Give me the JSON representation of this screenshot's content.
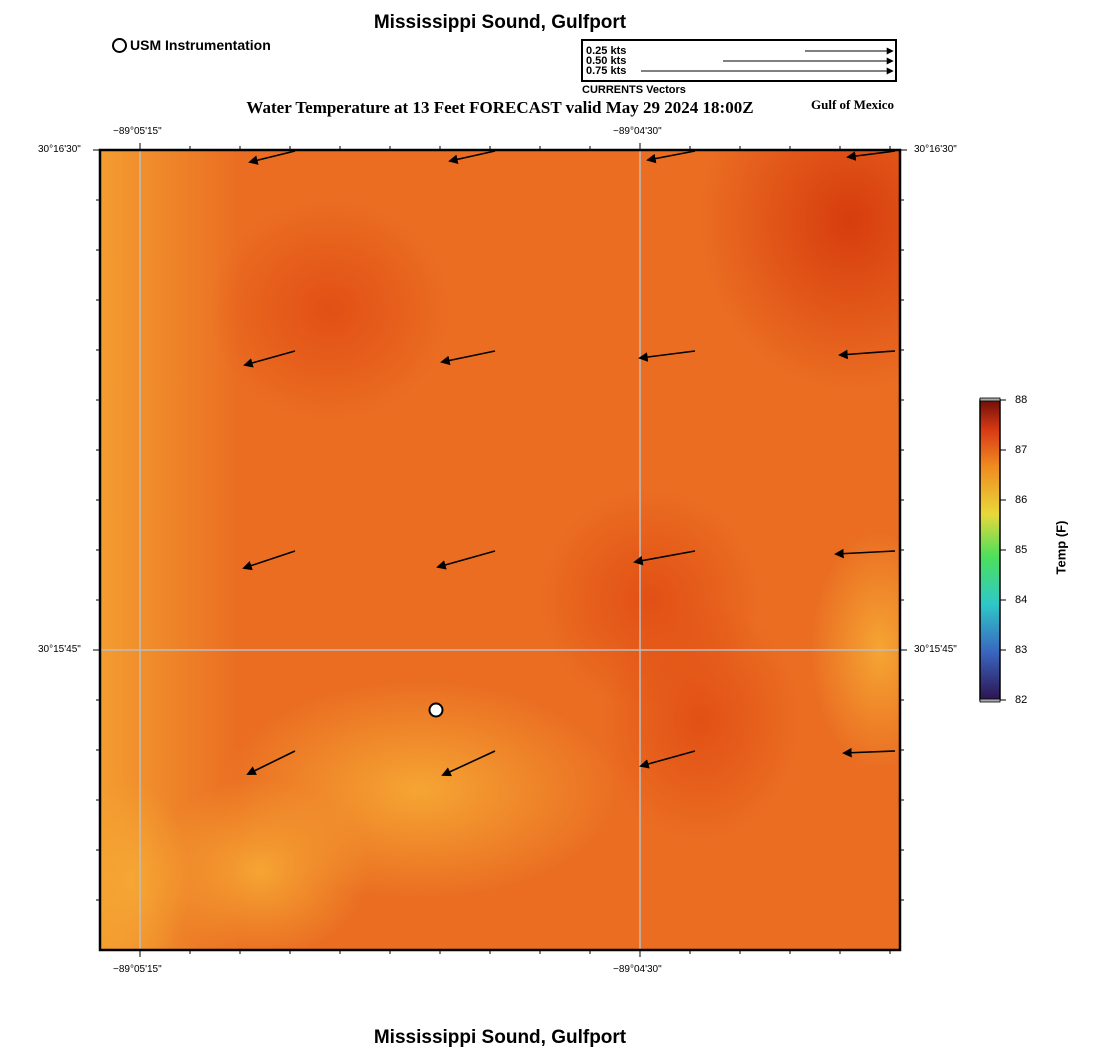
{
  "title": "Mississippi Sound, Gulfport",
  "subtitle": "Water Temperature at 13 Feet FORECAST valid May 29 2024 18:00Z",
  "region_label": "Gulf of Mexico",
  "legend": {
    "station_label": "USM Instrumentation",
    "vector_scale": [
      "0.25 kts",
      "0.50 kts",
      "0.75 kts"
    ],
    "vector_caption": "CURRENTS Vectors"
  },
  "axes": {
    "lon_ticks": [
      "−89°05'15\"",
      "−89°04'30\""
    ],
    "lat_ticks": [
      "30°16'30\"",
      "30°15'45\""
    ]
  },
  "colorbar": {
    "title": "Temp (F)",
    "ticks": [
      "88",
      "87",
      "86",
      "85",
      "84",
      "83",
      "82"
    ],
    "range": [
      82,
      88
    ],
    "colors": [
      "#2c1450",
      "#3a66c0",
      "#2ec8c8",
      "#4ee05a",
      "#e8d83a",
      "#f08a20",
      "#d83a14",
      "#6e0f08"
    ]
  },
  "map_colors": {
    "base": "#ea6d22",
    "warm": "#d8400c",
    "light": "#f4a232"
  },
  "station_icon": "station-circle-icon",
  "current_vectors_note": "westward currents"
}
